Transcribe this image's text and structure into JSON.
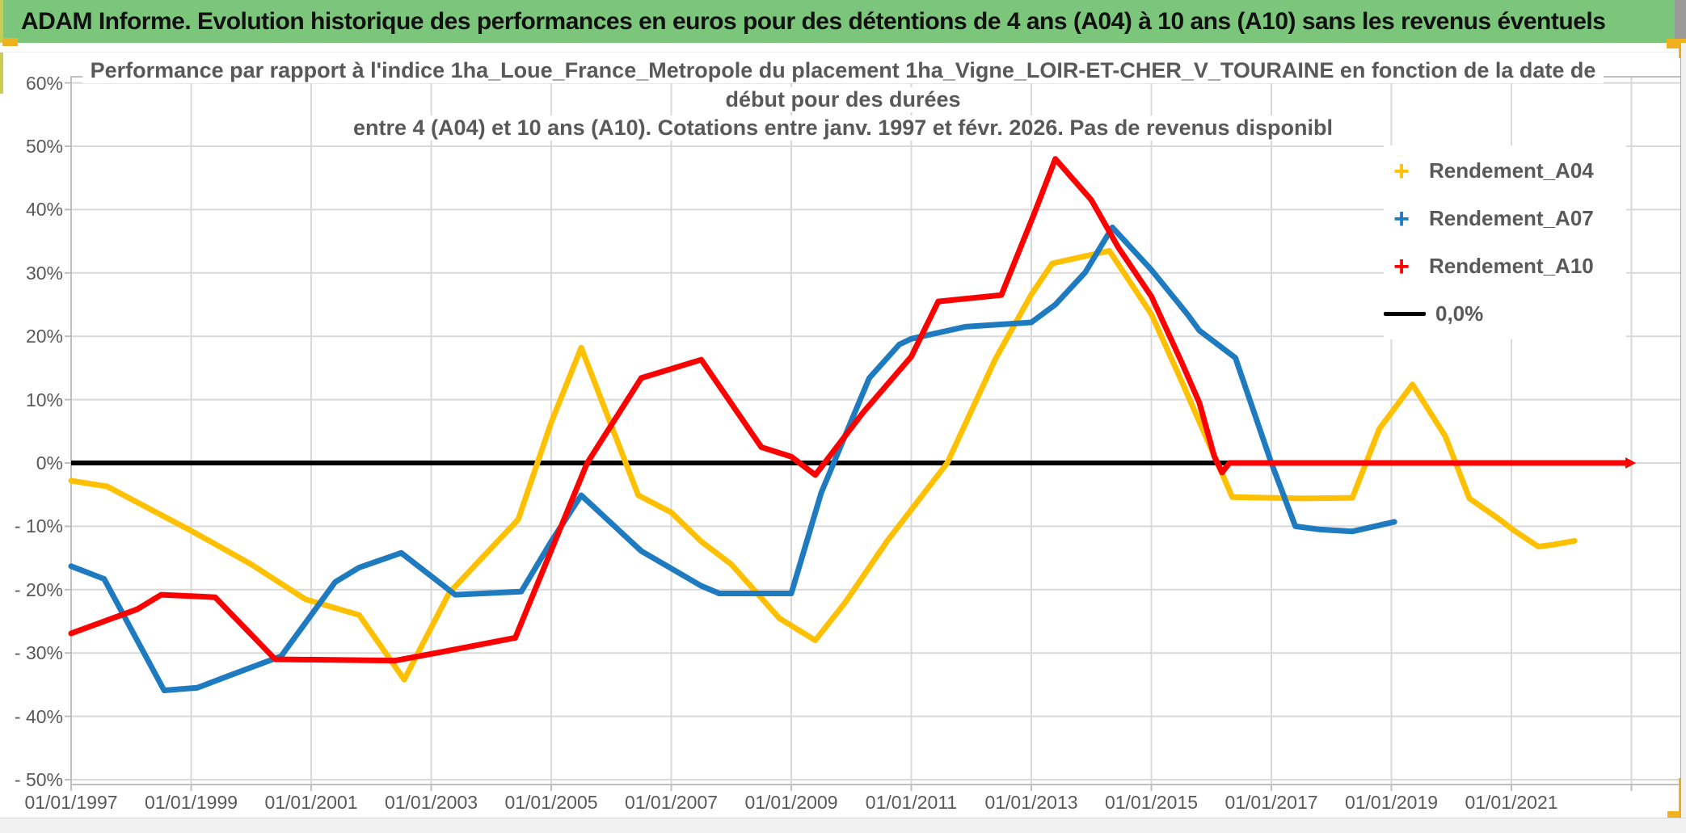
{
  "header": {
    "title": "ADAM Informe. Evolution historique des performances en euros pour des détentions de 4 ans (A04) à 10 ans (A10) sans les revenus éventuels",
    "background": "#7cc67c"
  },
  "chart": {
    "title_lines": [
      "Performance par rapport à l'indice 1ha_Loue_France_Metropole  du placement 1ha_Vigne_LOIR-ET-CHER_V_TOURAINE en fonction de la date de",
      "début pour des durées",
      "entre 4 (A04) et 10 ans (A10). Cotations entre janv. 1997 et févr. 2026. Pas de revenus disponibl"
    ]
  },
  "chart_data": {
    "type": "line",
    "title": "Performance par rapport à l'indice 1ha_Loue_France_Metropole du placement 1ha_Vigne_LOIR-ET-CHER_V_TOURAINE en fonction de la date de début pour des durées entre 4 (A04) et 10 ans (A10). Cotations entre janv. 1997 et févr. 2026. Pas de revenus disponibl",
    "xlabel": "",
    "ylabel": "",
    "grid": true,
    "legend_position": "right-top",
    "x_axis": {
      "tick_years": [
        1997,
        1999,
        2001,
        2003,
        2005,
        2007,
        2009,
        2011,
        2013,
        2015,
        2017,
        2019,
        2021
      ],
      "tick_labels": [
        "01/01/1997",
        "01/01/1999",
        "01/01/2001",
        "01/01/2003",
        "01/01/2005",
        "01/01/2007",
        "01/01/2009",
        "01/01/2011",
        "01/01/2013",
        "01/01/2015",
        "01/01/2017",
        "01/01/2019",
        "01/01/2021"
      ],
      "gridline_years": [
        1997,
        1999,
        2001,
        2003,
        2005,
        2007,
        2009,
        2011,
        2013,
        2015,
        2017,
        2019,
        2021,
        2023
      ],
      "range_years": [
        1997,
        2023.85
      ]
    },
    "y_axis": {
      "unit": "%",
      "ticks": [
        60,
        50,
        40,
        30,
        20,
        10,
        0,
        -10,
        -20,
        -30,
        -40,
        -50
      ],
      "tick_labels": [
        "60%",
        "50%",
        "40%",
        "30%",
        "20%",
        "10%",
        "0%",
        "- 10%",
        "- 20%",
        "- 30%",
        "- 40%",
        "- 50%"
      ],
      "range": [
        -50,
        60
      ]
    },
    "series": [
      {
        "name": "Rendement_A04",
        "color": "#FFC000",
        "marker": "+",
        "points": [
          [
            1997.0,
            -2.8
          ],
          [
            1997.6,
            -3.7
          ],
          [
            1999.0,
            -10.7
          ],
          [
            2000.0,
            -16.0
          ],
          [
            2000.9,
            -21.5
          ],
          [
            2001.8,
            -24.0
          ],
          [
            2002.55,
            -34.2
          ],
          [
            2003.3,
            -20.5
          ],
          [
            2004.45,
            -8.9
          ],
          [
            2005.0,
            6.4
          ],
          [
            2005.5,
            18.2
          ],
          [
            2006.45,
            -5.1
          ],
          [
            2007.0,
            -7.8
          ],
          [
            2007.5,
            -12.4
          ],
          [
            2008.0,
            -16.0
          ],
          [
            2008.8,
            -24.5
          ],
          [
            2009.4,
            -28.0
          ],
          [
            2009.9,
            -22.0
          ],
          [
            2010.6,
            -12.3
          ],
          [
            2011.6,
            0.0
          ],
          [
            2012.4,
            16.4
          ],
          [
            2013.0,
            26.6
          ],
          [
            2013.35,
            31.5
          ],
          [
            2014.3,
            33.5
          ],
          [
            2015.0,
            23.5
          ],
          [
            2015.5,
            13.0
          ],
          [
            2016.1,
            0.0
          ],
          [
            2016.35,
            -5.4
          ],
          [
            2017.5,
            -5.6
          ],
          [
            2018.35,
            -5.5
          ],
          [
            2018.8,
            5.4
          ],
          [
            2019.35,
            12.4
          ],
          [
            2019.9,
            4.2
          ],
          [
            2020.3,
            -5.6
          ],
          [
            2020.8,
            -8.9
          ],
          [
            2021.05,
            -10.7
          ],
          [
            2021.45,
            -13.2
          ],
          [
            2021.7,
            -12.9
          ],
          [
            2022.05,
            -12.3
          ]
        ]
      },
      {
        "name": "Rendement_A07",
        "color": "#1F7BC0",
        "marker": "+",
        "points": [
          [
            1997.0,
            -16.3
          ],
          [
            1997.55,
            -18.3
          ],
          [
            1998.55,
            -35.9
          ],
          [
            1999.1,
            -35.5
          ],
          [
            1999.6,
            -33.7
          ],
          [
            2000.5,
            -30.5
          ],
          [
            2001.4,
            -18.8
          ],
          [
            2001.8,
            -16.5
          ],
          [
            2002.5,
            -14.2
          ],
          [
            2003.4,
            -20.8
          ],
          [
            2004.5,
            -20.3
          ],
          [
            2005.0,
            -12.4
          ],
          [
            2005.5,
            -5.1
          ],
          [
            2006.5,
            -13.9
          ],
          [
            2007.5,
            -19.4
          ],
          [
            2007.8,
            -20.6
          ],
          [
            2009.0,
            -20.6
          ],
          [
            2009.5,
            -4.7
          ],
          [
            2010.3,
            13.4
          ],
          [
            2010.8,
            18.7
          ],
          [
            2011.0,
            19.6
          ],
          [
            2011.9,
            21.5
          ],
          [
            2013.0,
            22.2
          ],
          [
            2013.4,
            25.0
          ],
          [
            2013.9,
            30.1
          ],
          [
            2014.35,
            37.2
          ],
          [
            2015.0,
            30.5
          ],
          [
            2015.6,
            23.5
          ],
          [
            2015.8,
            20.9
          ],
          [
            2016.4,
            16.6
          ],
          [
            2017.0,
            0.0
          ],
          [
            2017.4,
            -10.0
          ],
          [
            2017.8,
            -10.5
          ],
          [
            2018.35,
            -10.8
          ],
          [
            2019.05,
            -9.3
          ]
        ]
      },
      {
        "name": "Rendement_A10",
        "color": "#FE0000",
        "marker": "+",
        "end_arrow": true,
        "points": [
          [
            1997.0,
            -26.9
          ],
          [
            1998.1,
            -23.1
          ],
          [
            1998.5,
            -20.8
          ],
          [
            1999.4,
            -21.2
          ],
          [
            2000.4,
            -31.0
          ],
          [
            2002.4,
            -31.2
          ],
          [
            2003.2,
            -29.8
          ],
          [
            2004.4,
            -27.6
          ],
          [
            2005.6,
            0.0
          ],
          [
            2006.5,
            13.4
          ],
          [
            2007.5,
            16.3
          ],
          [
            2008.5,
            2.5
          ],
          [
            2009.0,
            1.0
          ],
          [
            2009.4,
            -1.9
          ],
          [
            2010.2,
            8.0
          ],
          [
            2011.0,
            16.8
          ],
          [
            2011.45,
            25.5
          ],
          [
            2012.5,
            26.5
          ],
          [
            2013.05,
            39.4
          ],
          [
            2013.4,
            48.0
          ],
          [
            2014.0,
            41.5
          ],
          [
            2014.45,
            34.0
          ],
          [
            2015.0,
            26.3
          ],
          [
            2015.5,
            16.0
          ],
          [
            2015.8,
            9.5
          ],
          [
            2016.05,
            1.0
          ],
          [
            2016.18,
            -1.5
          ],
          [
            2016.3,
            0.0
          ],
          [
            2022.9,
            0.0
          ]
        ]
      }
    ],
    "zero_line": {
      "name": "0,0%",
      "color": "#000000",
      "points": [
        [
          1997.0,
          0.0
        ],
        [
          2022.9,
          0.0
        ]
      ]
    }
  },
  "colors": {
    "header_green": "#7cc67c",
    "handle_amber": "#efb11f",
    "gridline": "#d9d9d9",
    "plot_border": "#bfbfbf",
    "axis_text": "#595959",
    "series_a04": "#FFC000",
    "series_a07": "#1F7BC0",
    "series_a10": "#FE0000",
    "zero_line": "#000000"
  }
}
